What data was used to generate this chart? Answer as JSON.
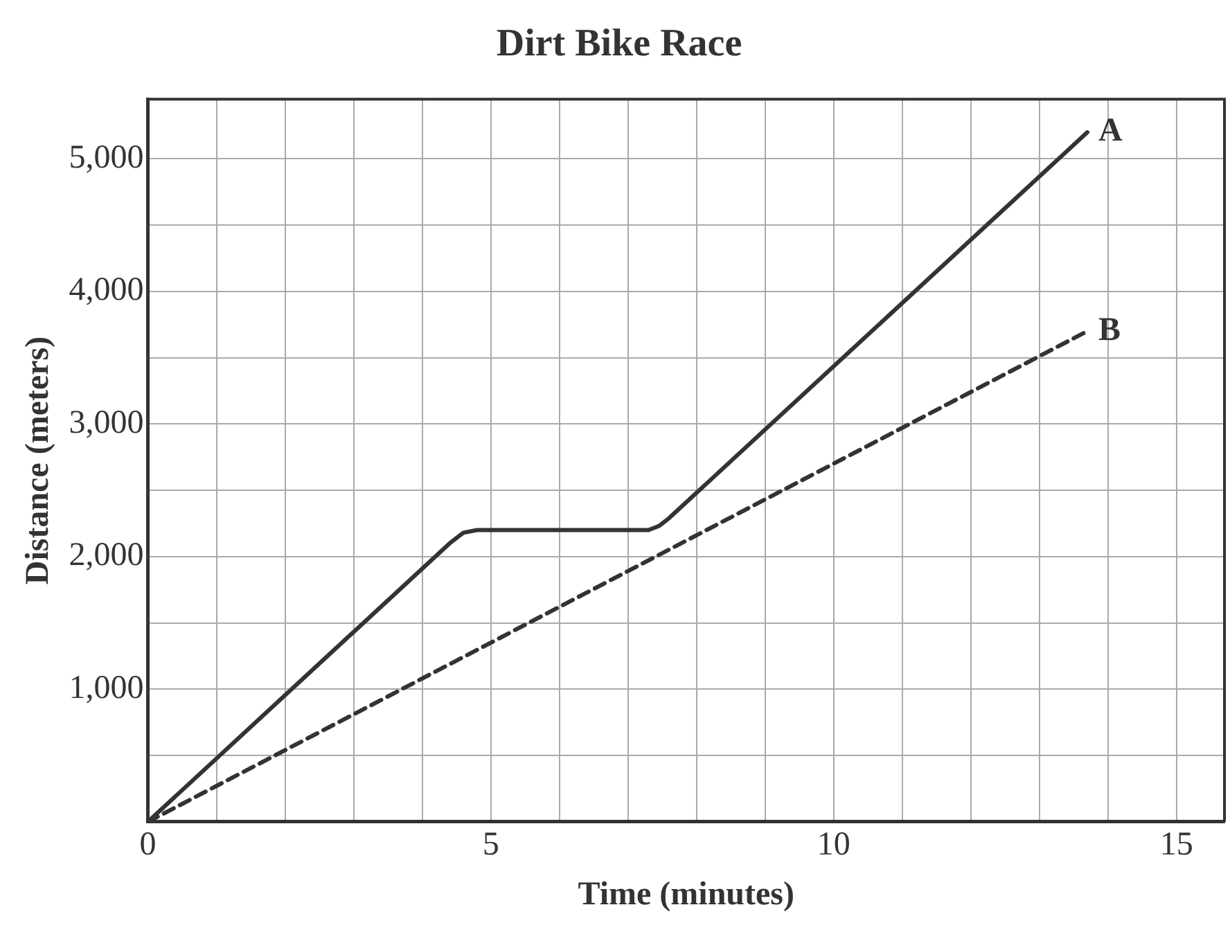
{
  "chart_data": {
    "type": "line",
    "title": "Dirt Bike Race",
    "xlabel": "Time (minutes)",
    "ylabel": "Distance (meters)",
    "series": [
      {
        "color": "#333333",
        "line_style": "solid",
        "x": [
          0,
          4.4,
          4.6,
          4.8,
          7.3,
          7.45,
          7.6,
          13.7
        ],
        "values": [
          0,
          2100,
          2180,
          2200,
          2200,
          2230,
          2290,
          5200
        ]
      },
      {
        "color": "#333333",
        "line_style": "dashed",
        "x": [
          0,
          13.7
        ],
        "values": [
          0,
          3700
        ]
      }
    ],
    "annotations": [
      {
        "text": "A",
        "x": 13.7,
        "y": 5200
      },
      {
        "text": "B",
        "x": 13.7,
        "y": 3700
      }
    ],
    "xlim": [
      0,
      15.7
    ],
    "ylim": [
      0,
      5450
    ],
    "xticks": [
      {
        "value": 0,
        "label": "0"
      },
      {
        "value": 1,
        "label": null
      },
      {
        "value": 2,
        "label": null
      },
      {
        "value": 3,
        "label": null
      },
      {
        "value": 4,
        "label": null
      },
      5,
      {
        "value": 6,
        "label": null
      },
      {
        "value": 7,
        "label": null
      },
      {
        "value": 8,
        "label": null
      },
      {
        "value": 9,
        "label": null
      },
      10,
      {
        "value": 11,
        "label": null
      },
      {
        "value": 12,
        "label": null
      },
      {
        "value": 13,
        "label": null
      },
      {
        "value": 14,
        "label": null
      },
      15
    ],
    "yticks": [
      {
        "value": 0,
        "label": null
      },
      {
        "value": 500,
        "label": null
      },
      {
        "value": 1000,
        "label": "1,000"
      },
      {
        "value": 1500,
        "label": null
      },
      {
        "value": 2000,
        "label": "2,000"
      },
      {
        "value": 2500,
        "label": null
      },
      {
        "value": 3000,
        "label": "3,000"
      },
      {
        "value": 3500,
        "label": null
      },
      {
        "value": 4000,
        "label": "4,000"
      },
      {
        "value": 4500,
        "label": null
      },
      {
        "value": 5000,
        "label": "5,000"
      }
    ],
    "grid": true,
    "marker": "none",
    "legend": false
  }
}
